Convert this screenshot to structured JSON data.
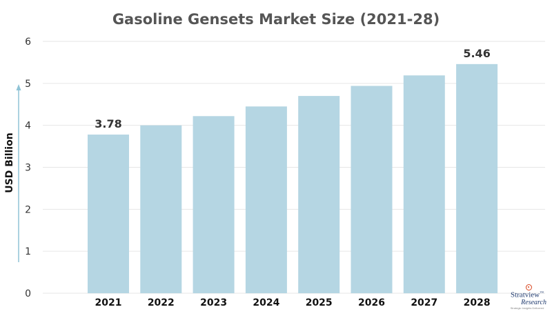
{
  "chart_data": {
    "type": "bar",
    "title": "Gasoline Gensets Market Size (2021-28)",
    "ylabel": "USD Billion",
    "xlabel": "",
    "categories": [
      "2021",
      "2022",
      "2023",
      "2024",
      "2025",
      "2026",
      "2027",
      "2028"
    ],
    "values": [
      3.78,
      4.0,
      4.22,
      4.45,
      4.7,
      4.94,
      5.19,
      5.46
    ],
    "data_labels": [
      {
        "category": "2021",
        "text": "3.78"
      },
      {
        "category": "2028",
        "text": "5.46"
      }
    ],
    "ylim": [
      0,
      6
    ],
    "yticks": [
      "0",
      "1",
      "2",
      "3",
      "4",
      "5",
      "6"
    ],
    "grid": true,
    "bar_color": "#b5d6e3",
    "axis_arrow_color": "#8fc3d6"
  },
  "logo": {
    "name": "Stratview",
    "sub": "Research",
    "tagline": "Strategic Insights Delivered"
  }
}
